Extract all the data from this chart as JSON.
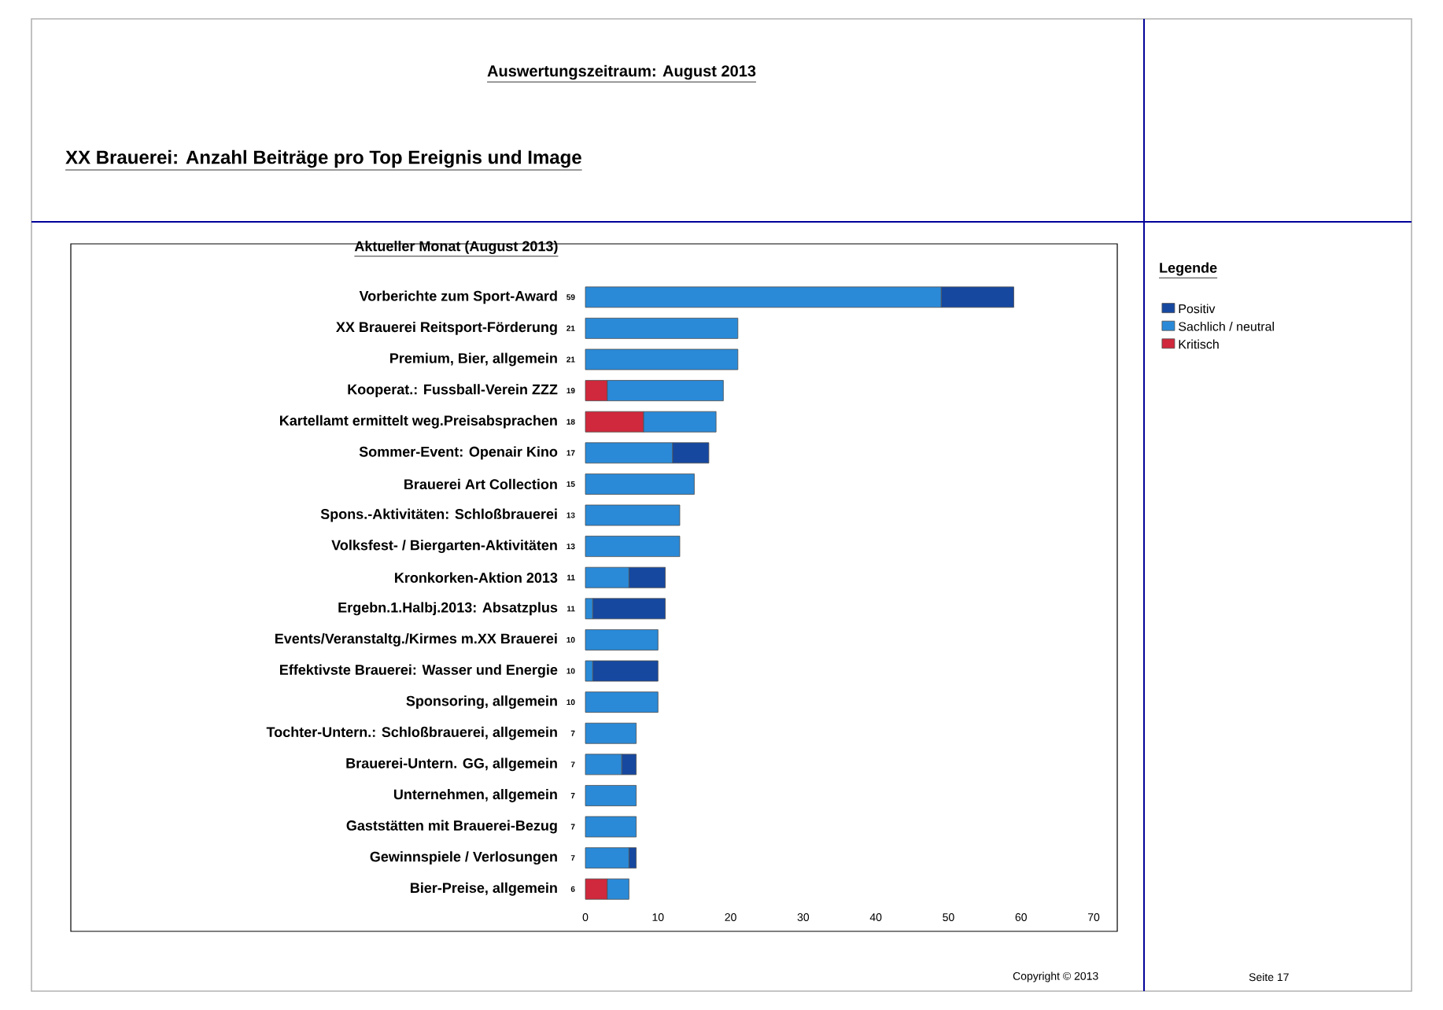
{
  "chart_data": {
    "type": "bar",
    "orientation": "horizontal",
    "stacked": true,
    "title": "Aktueller Monat (August 2013)",
    "subtitle": "Auswertungszeitraum: August 2013",
    "annotations": [
      "XX Brauerei: Anzahl Beiträge pro Top Ereignis und Image",
      "Copyright © 2013",
      "Seite 17"
    ],
    "legend_title": "Legende",
    "legend": "right",
    "categories": [
      "Vorberichte zum Sport-Award",
      "XX Brauerei Reitsport-Förderung",
      "Premium, Bier, allgemein",
      "Kooperat.: Fussball-Verein ZZZ",
      "Kartellamt ermittelt weg.Preisabsprachen",
      "Sommer-Event: Openair Kino",
      "Brauerei Art Collection",
      "Spons.-Aktivitäten: Schloßbrauerei",
      "Volksfest- / Biergarten-Aktivitäten",
      "Kronkorken-Aktion 2013",
      "Ergebn.1.Halbj.2013: Absatzplus",
      "Events/Veranstaltg./Kirmes m.XX Brauerei",
      "Effektivste Brauerei: Wasser und Energie",
      "Sponsoring, allgemein",
      "Tochter-Untern.: Schloßbrauerei, allgemein",
      "Brauerei-Untern. GG, allgemein",
      "Unternehmen, allgemein",
      "Gaststätten mit Brauerei-Bezug",
      "Gewinnspiele / Verlosungen",
      "Bier-Preise, allgemein"
    ],
    "series": [
      {
        "name": "Kritisch",
        "color": "#d0283c",
        "values": [
          0,
          0,
          0,
          3,
          8,
          0,
          0,
          0,
          0,
          0,
          0,
          0,
          0,
          0,
          0,
          0,
          0,
          0,
          0,
          3
        ]
      },
      {
        "name": "Sachlich / neutral",
        "color": "#2a8ad8",
        "values": [
          49,
          21,
          21,
          16,
          10,
          12,
          15,
          13,
          13,
          6,
          1,
          10,
          1,
          10,
          7,
          5,
          7,
          7,
          6,
          3
        ]
      },
      {
        "name": "Positiv",
        "color": "#1648a0",
        "values": [
          10,
          0,
          0,
          0,
          0,
          5,
          0,
          0,
          0,
          5,
          10,
          0,
          9,
          0,
          0,
          2,
          0,
          0,
          1,
          0
        ]
      }
    ],
    "totals": [
      "59",
      "21",
      "21",
      "19",
      "18",
      "17",
      "15",
      "13",
      "13",
      "11",
      "11",
      "10",
      "10",
      "10",
      "7",
      "7",
      "7",
      "7",
      "7",
      "6"
    ],
    "xlim": [
      0,
      70
    ],
    "xticks": [
      0,
      10,
      20,
      30,
      40,
      50,
      60,
      70
    ]
  }
}
